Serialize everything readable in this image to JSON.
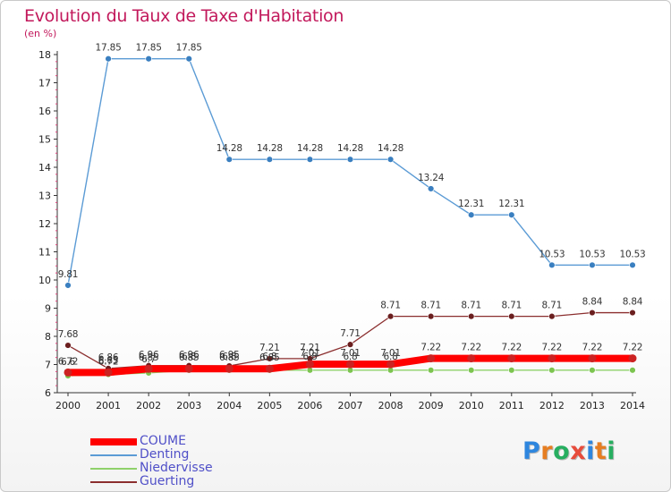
{
  "header": {
    "title": "Evolution du Taux de Taxe d'Habitation",
    "subtitle": "(en %)"
  },
  "logo": {
    "letters": [
      "P",
      "r",
      "o",
      "x",
      "i",
      "t",
      "i"
    ],
    "colors": [
      "#2e86de",
      "#e67e22",
      "#27ae60",
      "#e74c3c",
      "#2e86de",
      "#e67e22",
      "#27ae60"
    ]
  },
  "chart_data": {
    "type": "line",
    "title": "Evolution du Taux de Taxe d'Habitation",
    "ylabel": "(en %)",
    "xlabel": "",
    "x": [
      "2000",
      "2001",
      "2002",
      "2003",
      "2004",
      "2005",
      "2006",
      "2007",
      "2008",
      "2009",
      "2010",
      "2011",
      "2012",
      "2013",
      "2014"
    ],
    "ylim": [
      6,
      18
    ],
    "yticks": [
      "6",
      "7",
      "8",
      "9",
      "10",
      "11",
      "12",
      "13",
      "14",
      "15",
      "16",
      "17",
      "18"
    ],
    "grid": false,
    "legend_position": "bottom-left",
    "series": [
      {
        "name": "COUME",
        "color": "#ff0000",
        "point_color": "#cc2222",
        "values": [
          6.72,
          6.72,
          6.85,
          6.85,
          6.85,
          6.85,
          7.01,
          7.01,
          7.01,
          7.22,
          7.22,
          7.22,
          7.22,
          7.22,
          7.22
        ],
        "labels": [
          "6.72",
          "6.72",
          "6.85",
          "6.85",
          "6.85",
          "6.85",
          "7.01",
          "7.01",
          "7.01",
          "7.22",
          "7.22",
          "7.22",
          "7.22",
          "7.22",
          "7.22"
        ]
      },
      {
        "name": "Denting",
        "color": "#5b9bd5",
        "point_color": "#3a7fc0",
        "values": [
          9.81,
          17.85,
          17.85,
          17.85,
          14.28,
          14.28,
          14.28,
          14.28,
          14.28,
          13.24,
          12.31,
          12.31,
          10.53,
          10.53,
          10.53
        ],
        "labels": [
          "9.81",
          "17.85",
          "17.85",
          "17.85",
          "14.28",
          "14.28",
          "14.28",
          "14.28",
          "14.28",
          "13.24",
          "12.31",
          "12.31",
          "10.53",
          "10.53",
          "10.53"
        ]
      },
      {
        "name": "Niedervisse",
        "color": "#8fd16a",
        "point_color": "#7cc44f",
        "values": [
          6.6,
          6.65,
          6.7,
          6.8,
          6.8,
          6.8,
          6.8,
          6.8,
          6.8,
          6.8,
          6.8,
          6.8,
          6.8,
          6.8,
          6.8
        ],
        "labels": [
          "6.6",
          "6.65",
          "6.7",
          "6.8",
          "6.8",
          "6.8",
          "6.8",
          "6.8",
          "6.8",
          "",
          "",
          "",
          "",
          "",
          ""
        ]
      },
      {
        "name": "Guerting",
        "color": "#8b2e2e",
        "point_color": "#6b1f1f",
        "values": [
          7.68,
          6.86,
          6.96,
          6.96,
          6.95,
          7.21,
          7.21,
          7.71,
          8.71,
          8.71,
          8.71,
          8.71,
          8.71,
          8.84,
          8.84
        ],
        "labels": [
          "7.68",
          "6.86",
          "6.96",
          "6.96",
          "6.95",
          "7.21",
          "7.21",
          "7.71",
          "8.71",
          "8.71",
          "8.71",
          "8.71",
          "8.71",
          "8.84",
          "8.84"
        ]
      }
    ]
  }
}
